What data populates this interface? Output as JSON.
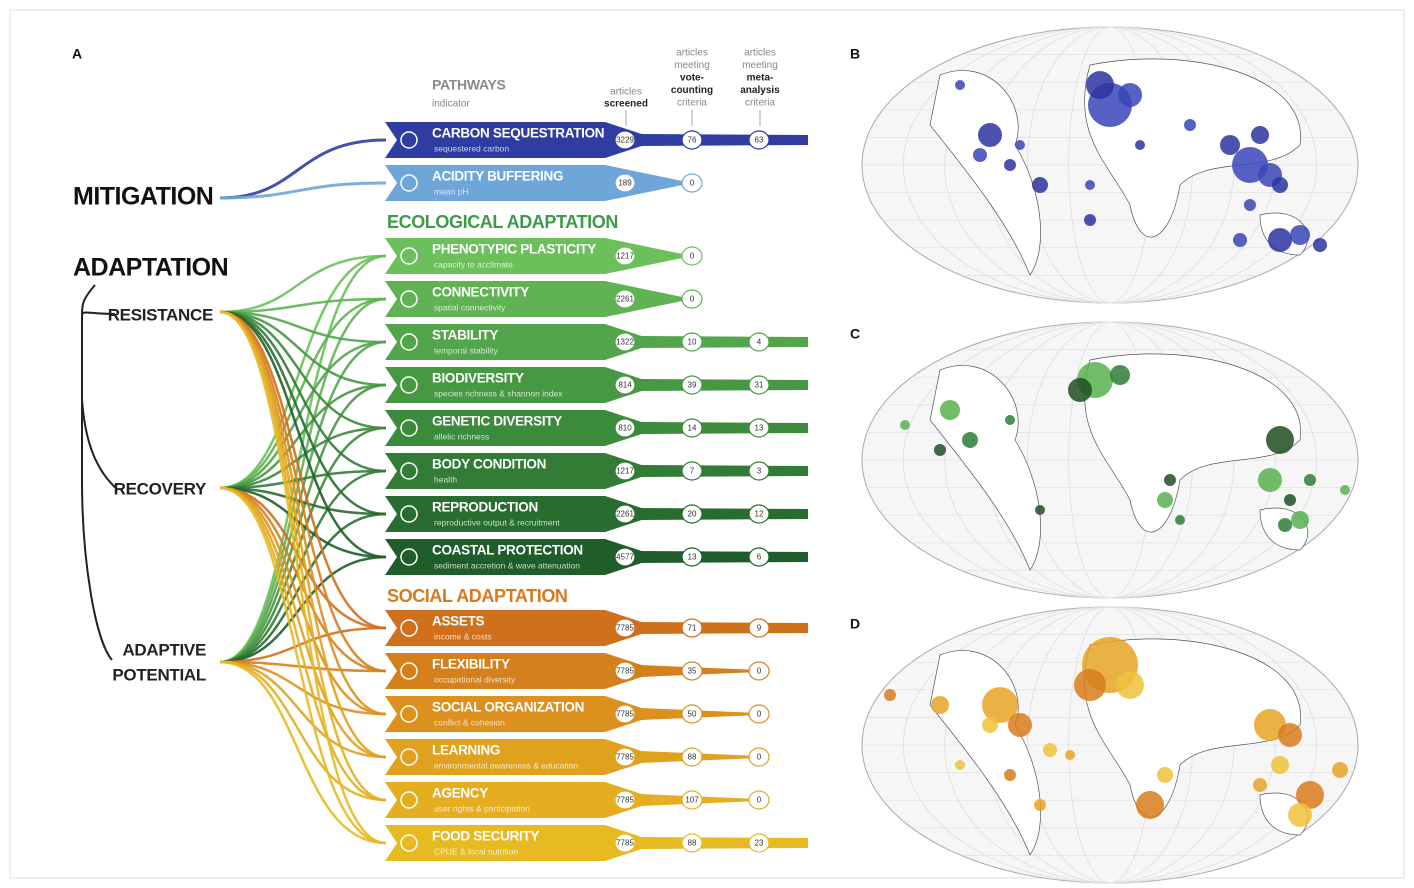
{
  "panels": [
    "A",
    "B",
    "C",
    "D"
  ],
  "header": {
    "pathways": "PATHWAYS",
    "indicator": "indicator",
    "screened": [
      "articles",
      "screened"
    ],
    "vote": [
      "articles",
      "meeting",
      "vote-",
      "counting",
      "criteria"
    ],
    "meta": [
      "articles",
      "meeting",
      "meta-",
      "analysis",
      "criteria"
    ]
  },
  "goals": {
    "mitigation": "MITIGATION",
    "adaptation": "ADAPTATION",
    "resistance": "RESISTANCE",
    "recovery": "RECOVERY",
    "adaptive_potential": [
      "ADAPTIVE",
      "POTENTIAL"
    ]
  },
  "sections": [
    {
      "title": "ECOLOGICAL ADAPTATION",
      "color": "#3f9a45"
    },
    {
      "title": "SOCIAL ADAPTATION",
      "color": "#d9791c"
    }
  ],
  "rows": [
    {
      "name": "CARBON SEQUESTRATION",
      "indicator": "sequestered carbon",
      "screened": 3229,
      "vote": 76,
      "meta": 63,
      "color": "#2f3da3"
    },
    {
      "name": "ACIDITY BUFFERING",
      "indicator": "mean pH",
      "screened": 189,
      "vote": 0,
      "color": "#6ea6da"
    },
    {
      "name": "PHENOTYPIC PLASTICITY",
      "indicator": "capacity to acclimate",
      "screened": 1217,
      "vote": 0,
      "color": "#6cc05c"
    },
    {
      "name": "CONNECTIVITY",
      "indicator": "spatial connectivity",
      "screened": 2261,
      "vote": 0,
      "color": "#5fb352"
    },
    {
      "name": "STABILITY",
      "indicator": "temporal stability",
      "screened": 1322,
      "vote": 10,
      "meta": 4,
      "color": "#52a54a"
    },
    {
      "name": "BIODIVERSITY",
      "indicator": "species richness & shannon index",
      "screened": 814,
      "vote": 39,
      "meta": 31,
      "color": "#479843"
    },
    {
      "name": "GENETIC DIVERSITY",
      "indicator": "allelic richness",
      "screened": 810,
      "vote": 14,
      "meta": 13,
      "color": "#3c8a3c"
    },
    {
      "name": "BODY CONDITION",
      "indicator": "health",
      "screened": 1217,
      "vote": 7,
      "meta": 3,
      "color": "#327c35"
    },
    {
      "name": "REPRODUCTION",
      "indicator": "reproductive output & recruitment",
      "screened": 2261,
      "vote": 20,
      "meta": 12,
      "color": "#286d2f"
    },
    {
      "name": "COASTAL PROTECTION",
      "indicator": "sediment accretion & wave attenuation",
      "screened": 4577,
      "vote": 13,
      "meta": 6,
      "color": "#1f5e2a"
    },
    {
      "name": "ASSETS",
      "indicator": "income & costs",
      "screened": 7785,
      "vote": 71,
      "meta": 9,
      "color": "#d06f1c"
    },
    {
      "name": "FLEXIBILITY",
      "indicator": "occupational diversity",
      "screened": 7785,
      "vote": 35,
      "meta": 0,
      "color": "#d6801d"
    },
    {
      "name": "SOCIAL ORGANIZATION",
      "indicator": "conflict & cohesion",
      "screened": 7785,
      "vote": 50,
      "meta": 0,
      "color": "#dc911e"
    },
    {
      "name": "LEARNING",
      "indicator": "environmental awareness & education",
      "screened": 7785,
      "vote": 88,
      "meta": 0,
      "color": "#e0a11f"
    },
    {
      "name": "AGENCY",
      "indicator": "user rights & participation",
      "screened": 7785,
      "vote": 107,
      "meta": 0,
      "color": "#e4ae20"
    },
    {
      "name": "FOOD SECURITY",
      "indicator": "CPUE & local nutrition",
      "screened": 7785,
      "vote": 88,
      "meta": 23,
      "color": "#e7ba22"
    }
  ]
}
